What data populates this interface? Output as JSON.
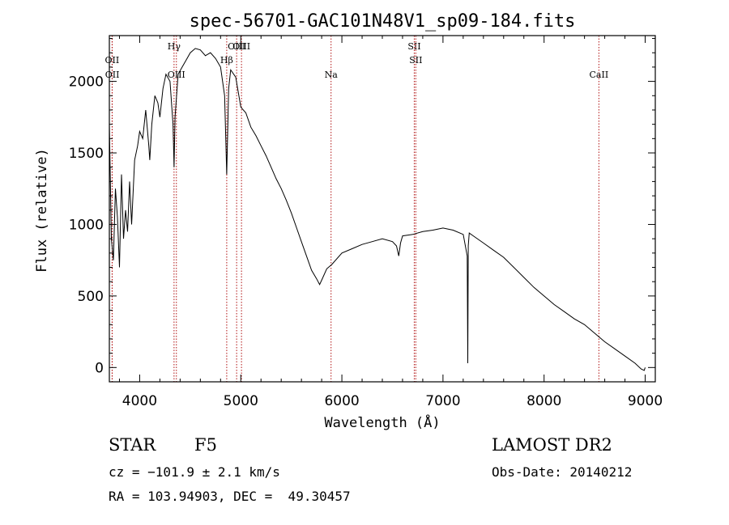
{
  "chart_data": {
    "type": "line",
    "title": "spec-56701-GAC101N48V1_sp09-184.fits",
    "xlabel": "Wavelength (Å)",
    "ylabel": "Flux (relative)",
    "xlim": [
      3700,
      9100
    ],
    "ylim": [
      -100,
      2320
    ],
    "x_ticks": [
      4000,
      5000,
      6000,
      7000,
      8000,
      9000
    ],
    "x_tick_labels": [
      "4000",
      "5000",
      "6000",
      "7000",
      "8000",
      "9000"
    ],
    "y_ticks": [
      0,
      500,
      1000,
      1500,
      2000
    ],
    "y_tick_labels": [
      "0",
      "500",
      "1000",
      "1500",
      "2000"
    ],
    "grid": false,
    "series": [
      {
        "x": [
          3700,
          3720,
          3740,
          3760,
          3780,
          3800,
          3820,
          3840,
          3860,
          3880,
          3900,
          3920,
          3950,
          3980,
          4000,
          4030,
          4060,
          4090,
          4100,
          4120,
          4150,
          4180,
          4200,
          4230,
          4260,
          4300,
          4330,
          4340,
          4350,
          4380,
          4420,
          4460,
          4500,
          4550,
          4600,
          4650,
          4700,
          4750,
          4800,
          4840,
          4861,
          4880,
          4900,
          4950,
          5000,
          5050,
          5100,
          5150,
          5200,
          5250,
          5300,
          5350,
          5400,
          5450,
          5500,
          5550,
          5600,
          5650,
          5700,
          5750,
          5780,
          5800,
          5850,
          5900,
          6000,
          6100,
          6200,
          6300,
          6400,
          6500,
          6540,
          6563,
          6580,
          6600,
          6700,
          6800,
          6900,
          7000,
          7100,
          7200,
          7240,
          7245,
          7250,
          7260,
          7300,
          7400,
          7500,
          7600,
          7700,
          7800,
          7900,
          8000,
          8100,
          8200,
          8300,
          8400,
          8500,
          8600,
          8700,
          8800,
          8900,
          8960,
          8990,
          9000
        ],
        "y": [
          1700,
          900,
          750,
          1250,
          1050,
          700,
          1350,
          900,
          1100,
          950,
          1300,
          1000,
          1450,
          1550,
          1650,
          1600,
          1800,
          1550,
          1450,
          1700,
          1900,
          1850,
          1750,
          1950,
          2050,
          2000,
          1700,
          1400,
          1750,
          2050,
          2100,
          2150,
          2200,
          2230,
          2220,
          2180,
          2200,
          2160,
          2100,
          1900,
          1350,
          1950,
          2080,
          2030,
          1820,
          1780,
          1680,
          1620,
          1550,
          1480,
          1400,
          1320,
          1250,
          1170,
          1080,
          980,
          880,
          780,
          680,
          620,
          580,
          610,
          690,
          720,
          800,
          830,
          860,
          880,
          900,
          880,
          850,
          780,
          870,
          920,
          930,
          950,
          960,
          975,
          960,
          930,
          780,
          30,
          850,
          940,
          920,
          870,
          820,
          770,
          700,
          630,
          560,
          500,
          440,
          390,
          340,
          300,
          240,
          180,
          130,
          80,
          30,
          -10,
          -20,
          0
        ]
      }
    ],
    "lines": [
      {
        "x": 3727,
        "label": "OII",
        "row": 1
      },
      {
        "x": 3729,
        "label": "OII",
        "row": 2
      },
      {
        "x": 4340,
        "label": "Hγ",
        "row": 0
      },
      {
        "x": 4363,
        "label": "OIII",
        "row": 2
      },
      {
        "x": 4861,
        "label": "Hβ",
        "row": 1
      },
      {
        "x": 4959,
        "label": "OIII",
        "row": 0
      },
      {
        "x": 5007,
        "label": "OIII",
        "row": 0
      },
      {
        "x": 5893,
        "label": "Na",
        "row": 2
      },
      {
        "x": 6716,
        "label": "SII",
        "row": 0
      },
      {
        "x": 6731,
        "label": "SII",
        "row": 1
      },
      {
        "x": 8542,
        "label": "CaII",
        "row": 2
      }
    ]
  },
  "footer": {
    "type": "STAR",
    "subclass": "F5",
    "survey": "LAMOST DR2",
    "cz": "cz = −101.9 ± 2.1 km/s",
    "radec": "RA = 103.94903, DEC =  49.30457",
    "obs_date": "Obs-Date: 20140212"
  }
}
